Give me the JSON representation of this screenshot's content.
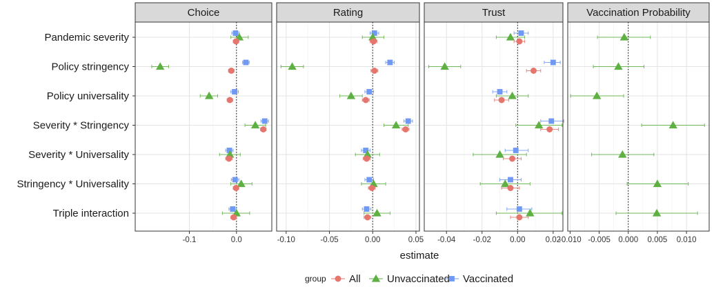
{
  "chart_data": {
    "type": "scatter",
    "subtype": "faceted dot-and-whisker (coefficient plot)",
    "xlabel": "estimate",
    "ylabel": "",
    "grid": true,
    "legend": {
      "title": "group",
      "placement": "bottom",
      "entries": [
        "All",
        "Unvaccinated",
        "Vaccinated"
      ]
    },
    "colors": {
      "All": "#E5766E",
      "Unvaccinated": "#5FB043",
      "Vaccinated": "#6F99F2"
    },
    "markers": {
      "All": "circle",
      "Unvaccinated": "triangle",
      "Vaccinated": "square"
    },
    "reference_line": {
      "x": 0,
      "style": "dotted"
    },
    "rows": [
      "Pandemic severity",
      "Policy stringency",
      "Policy universality",
      "Severity * Stringency",
      "Severity * Universality",
      "Stringency * Universality",
      "Triple interaction"
    ],
    "panels": [
      {
        "title": "Choice",
        "xlim": [
          -0.215,
          0.075
        ],
        "ticks": [
          -0.1,
          0.0
        ],
        "tick_labels": [
          "-0.1",
          "0.0"
        ],
        "series": [
          {
            "name": "Vaccinated",
            "points": [
              {
                "est": -0.002,
                "lo": -0.01,
                "hi": 0.006
              },
              {
                "est": 0.02,
                "lo": 0.013,
                "hi": 0.027
              },
              {
                "est": -0.004,
                "lo": -0.012,
                "hi": 0.004
              },
              {
                "est": 0.06,
                "lo": 0.052,
                "hi": 0.068
              },
              {
                "est": -0.015,
                "lo": -0.023,
                "hi": -0.007
              },
              {
                "est": -0.003,
                "lo": -0.011,
                "hi": 0.005
              },
              {
                "est": -0.008,
                "lo": -0.016,
                "hi": 0.0
              }
            ]
          },
          {
            "name": "Unvaccinated",
            "points": [
              {
                "est": 0.006,
                "lo": -0.012,
                "hi": 0.025
              },
              {
                "est": -0.162,
                "lo": -0.18,
                "hi": -0.144
              },
              {
                "est": -0.058,
                "lo": -0.077,
                "hi": -0.04
              },
              {
                "est": 0.04,
                "lo": 0.018,
                "hi": 0.062
              },
              {
                "est": -0.014,
                "lo": -0.036,
                "hi": 0.008
              },
              {
                "est": 0.01,
                "lo": -0.012,
                "hi": 0.033
              },
              {
                "est": 0.0,
                "lo": -0.03,
                "hi": 0.028
              }
            ]
          },
          {
            "name": "All",
            "points": [
              {
                "est": -0.001,
                "lo": -0.007,
                "hi": 0.005
              },
              {
                "est": -0.011,
                "lo": -0.017,
                "hi": -0.005
              },
              {
                "est": -0.014,
                "lo": -0.02,
                "hi": -0.008
              },
              {
                "est": 0.057,
                "lo": 0.051,
                "hi": 0.063
              },
              {
                "est": -0.016,
                "lo": -0.023,
                "hi": -0.009
              },
              {
                "est": -0.001,
                "lo": -0.007,
                "hi": 0.005
              },
              {
                "est": -0.006,
                "lo": -0.012,
                "hi": 0.0
              }
            ]
          }
        ]
      },
      {
        "title": "Rating",
        "xlim": [
          -0.111,
          0.054
        ],
        "ticks": [
          -0.1,
          -0.05,
          0.0,
          0.05
        ],
        "tick_labels": [
          "-0.10",
          "-0.05",
          "0.00",
          "0.05"
        ],
        "series": [
          {
            "name": "Vaccinated",
            "points": [
              {
                "est": 0.002,
                "lo": -0.003,
                "hi": 0.007
              },
              {
                "est": 0.02,
                "lo": 0.015,
                "hi": 0.025
              },
              {
                "est": -0.004,
                "lo": -0.009,
                "hi": 0.001
              },
              {
                "est": 0.041,
                "lo": 0.036,
                "hi": 0.046
              },
              {
                "est": -0.008,
                "lo": -0.013,
                "hi": -0.003
              },
              {
                "est": -0.004,
                "lo": -0.009,
                "hi": 0.001
              },
              {
                "est": -0.007,
                "lo": -0.012,
                "hi": -0.002
              }
            ]
          },
          {
            "name": "Unvaccinated",
            "points": [
              {
                "est": 0.0,
                "lo": -0.012,
                "hi": 0.013
              },
              {
                "est": -0.093,
                "lo": -0.106,
                "hi": -0.08
              },
              {
                "est": -0.025,
                "lo": -0.038,
                "hi": -0.012
              },
              {
                "est": 0.027,
                "lo": 0.013,
                "hi": 0.041
              },
              {
                "est": -0.006,
                "lo": -0.02,
                "hi": 0.008
              },
              {
                "est": 0.001,
                "lo": -0.013,
                "hi": 0.015
              },
              {
                "est": 0.005,
                "lo": -0.01,
                "hi": 0.02
              }
            ]
          },
          {
            "name": "All",
            "points": [
              {
                "est": 0.001,
                "lo": -0.003,
                "hi": 0.005
              },
              {
                "est": 0.002,
                "lo": -0.002,
                "hi": 0.006
              },
              {
                "est": -0.008,
                "lo": -0.012,
                "hi": -0.004
              },
              {
                "est": 0.038,
                "lo": 0.034,
                "hi": 0.042
              },
              {
                "est": -0.007,
                "lo": -0.011,
                "hi": -0.003
              },
              {
                "est": -0.001,
                "lo": -0.005,
                "hi": 0.003
              },
              {
                "est": -0.006,
                "lo": -0.01,
                "hi": -0.002
              }
            ]
          }
        ]
      },
      {
        "title": "Trust",
        "xlim": [
          -0.0525,
          0.0255
        ],
        "ticks": [
          -0.04,
          -0.02,
          0.0,
          0.02
        ],
        "tick_labels": [
          "-0.04",
          "-0.02",
          "0.00",
          "0.02"
        ],
        "series": [
          {
            "name": "Vaccinated",
            "points": [
              {
                "est": 0.002,
                "lo": -0.002,
                "hi": 0.006
              },
              {
                "est": 0.02,
                "lo": 0.015,
                "hi": 0.024
              },
              {
                "est": -0.01,
                "lo": -0.014,
                "hi": -0.006
              },
              {
                "est": 0.019,
                "lo": 0.013,
                "hi": 0.026
              },
              {
                "est": -0.001,
                "lo": -0.007,
                "hi": 0.006
              },
              {
                "est": -0.004,
                "lo": -0.01,
                "hi": 0.002
              },
              {
                "est": 0.001,
                "lo": -0.006,
                "hi": 0.008
              }
            ]
          },
          {
            "name": "Unvaccinated",
            "points": [
              {
                "est": -0.004,
                "lo": -0.012,
                "hi": 0.004
              },
              {
                "est": -0.041,
                "lo": -0.05,
                "hi": -0.032
              },
              {
                "est": -0.003,
                "lo": -0.012,
                "hi": 0.006
              },
              {
                "est": 0.012,
                "lo": -0.001,
                "hi": 0.025
              },
              {
                "est": -0.01,
                "lo": -0.025,
                "hi": 0.005
              },
              {
                "est": -0.007,
                "lo": -0.021,
                "hi": 0.007
              },
              {
                "est": 0.007,
                "lo": -0.012,
                "hi": 0.025
              }
            ]
          },
          {
            "name": "All",
            "points": [
              {
                "est": 0.001,
                "lo": -0.002,
                "hi": 0.004
              },
              {
                "est": 0.009,
                "lo": 0.005,
                "hi": 0.013
              },
              {
                "est": -0.009,
                "lo": -0.013,
                "hi": -0.005
              },
              {
                "est": 0.018,
                "lo": 0.013,
                "hi": 0.023
              },
              {
                "est": -0.003,
                "lo": -0.008,
                "hi": 0.002
              },
              {
                "est": -0.004,
                "lo": -0.009,
                "hi": 0.001
              },
              {
                "est": 0.001,
                "lo": -0.004,
                "hi": 0.006
              }
            ]
          }
        ]
      },
      {
        "title": "Vaccination Probability",
        "xlim": [
          -0.0104,
          0.0139
        ],
        "ticks": [
          -0.01,
          -0.005,
          0.0,
          0.005,
          0.01
        ],
        "tick_labels": [
          "-0.010",
          "-0.005",
          "0.000",
          "0.005",
          "0.010"
        ],
        "series": [
          {
            "name": "Unvaccinated",
            "points": [
              {
                "est": -0.0007,
                "lo": -0.0053,
                "hi": 0.0038
              },
              {
                "est": -0.0017,
                "lo": -0.006,
                "hi": 0.0027
              },
              {
                "est": -0.0054,
                "lo": -0.0099,
                "hi": -0.0008
              },
              {
                "est": 0.0077,
                "lo": 0.0023,
                "hi": 0.0131
              },
              {
                "est": -0.001,
                "lo": -0.0063,
                "hi": 0.0044
              },
              {
                "est": 0.005,
                "lo": -0.0002,
                "hi": 0.0103
              },
              {
                "est": 0.0049,
                "lo": -0.0021,
                "hi": 0.0119
              }
            ]
          }
        ]
      }
    ]
  }
}
